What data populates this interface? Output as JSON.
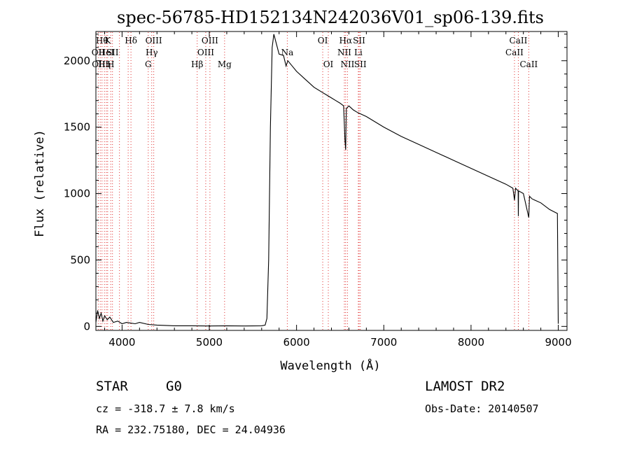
{
  "chart_data": {
    "type": "line",
    "title": "spec-56785-HD152134N242036V01_sp06-139.fits",
    "xlabel": "Wavelength (Å)",
    "ylabel": "Flux (relative)",
    "xlim": [
      3700,
      9100
    ],
    "ylim": [
      -30,
      2220
    ],
    "x_ticks": [
      4000,
      5000,
      6000,
      7000,
      8000,
      9000
    ],
    "x_tick_labels": [
      "4000",
      "5000",
      "6000",
      "7000",
      "8000",
      "9000"
    ],
    "y_ticks": [
      0,
      500,
      1000,
      1500,
      2000
    ],
    "y_tick_labels": [
      "0",
      "500",
      "1000",
      "1500",
      "2000"
    ],
    "grid": false,
    "series_color": "#000000",
    "line_marker_color": "#e03030",
    "series": [
      {
        "x": [
          3700,
          3720,
          3740,
          3760,
          3780,
          3800,
          3830,
          3860,
          3900,
          3950,
          4000,
          4050,
          4100,
          4150,
          4200,
          4300,
          4400,
          4600,
          4800,
          5000,
          5200,
          5400,
          5600,
          5640,
          5660,
          5680,
          5700,
          5720,
          5740,
          5760,
          5780,
          5800,
          5850,
          5880,
          5890,
          5900,
          5950,
          6000,
          6100,
          6200,
          6300,
          6350,
          6400,
          6450,
          6500,
          6540,
          6555,
          6563,
          6570,
          6600,
          6650,
          6700,
          6800,
          7000,
          7200,
          7400,
          7600,
          7800,
          8000,
          8200,
          8400,
          8480,
          8498,
          8510,
          8540,
          8542,
          8545,
          8600,
          8662,
          8670,
          8700,
          8800,
          8900,
          8960,
          8990,
          9000
        ],
        "y": [
          30,
          120,
          60,
          100,
          40,
          80,
          50,
          70,
          30,
          40,
          20,
          30,
          25,
          20,
          30,
          15,
          10,
          5,
          5,
          3,
          5,
          3,
          5,
          10,
          60,
          500,
          1500,
          2100,
          2200,
          2150,
          2100,
          2050,
          2040,
          1960,
          1980,
          2000,
          1960,
          1920,
          1860,
          1800,
          1760,
          1740,
          1720,
          1700,
          1680,
          1660,
          1400,
          1330,
          1640,
          1660,
          1630,
          1610,
          1580,
          1500,
          1430,
          1370,
          1310,
          1250,
          1190,
          1130,
          1070,
          1040,
          950,
          1040,
          1020,
          830,
          1020,
          1000,
          820,
          980,
          960,
          930,
          880,
          860,
          850,
          20
        ]
      }
    ],
    "line_markers": [
      {
        "wavelength": 3727,
        "label": "OII",
        "row": 1
      },
      {
        "wavelength": 3750,
        "label": "OIII",
        "row": 2
      },
      {
        "wavelength": 3770,
        "label": "Hθ",
        "row": 0
      },
      {
        "wavelength": 3798,
        "label": "Hη",
        "row": 2
      },
      {
        "wavelength": 3820,
        "label": "HeI",
        "row": 1
      },
      {
        "wavelength": 3835,
        "label": "K",
        "row": 0
      },
      {
        "wavelength": 3870,
        "label": "H",
        "row": 2
      },
      {
        "wavelength": 3890,
        "label": "SII",
        "row": 1
      },
      {
        "wavelength": 3970,
        "label": "",
        "row": 0
      },
      {
        "wavelength": 4070,
        "label": "",
        "row": 0
      },
      {
        "wavelength": 4102,
        "label": "Hδ",
        "row": 0
      },
      {
        "wavelength": 4300,
        "label": "G",
        "row": 2
      },
      {
        "wavelength": 4340,
        "label": "Hγ",
        "row": 1
      },
      {
        "wavelength": 4363,
        "label": "OIII",
        "row": 0
      },
      {
        "wavelength": 4861,
        "label": "Hβ",
        "row": 2
      },
      {
        "wavelength": 4959,
        "label": "OIII",
        "row": 1
      },
      {
        "wavelength": 5007,
        "label": "OIII",
        "row": 0
      },
      {
        "wavelength": 5175,
        "label": "Mg",
        "row": 2
      },
      {
        "wavelength": 5894,
        "label": "Na",
        "row": 1
      },
      {
        "wavelength": 6300,
        "label": "OI",
        "row": 0
      },
      {
        "wavelength": 6364,
        "label": "OI",
        "row": 2
      },
      {
        "wavelength": 6548,
        "label": "NII",
        "row": 1
      },
      {
        "wavelength": 6563,
        "label": "Hα",
        "row": 0
      },
      {
        "wavelength": 6584,
        "label": "NII",
        "row": 2
      },
      {
        "wavelength": 6708,
        "label": "Li",
        "row": 1
      },
      {
        "wavelength": 6717,
        "label": "SII",
        "row": 0
      },
      {
        "wavelength": 6731,
        "label": "SII",
        "row": 2
      },
      {
        "wavelength": 8498,
        "label": "CaII",
        "row": 1
      },
      {
        "wavelength": 8542,
        "label": "CaII",
        "row": 0
      },
      {
        "wavelength": 8662,
        "label": "CaII",
        "row": 2
      }
    ]
  },
  "info": {
    "object_class": "STAR",
    "subclass": "G0",
    "survey": "LAMOST DR2",
    "redshift": "cz = -318.7 ± 7.8 km/s",
    "obs_date": "Obs-Date: 20140507",
    "coords": "RA = 232.75180, DEC =  24.04936"
  }
}
